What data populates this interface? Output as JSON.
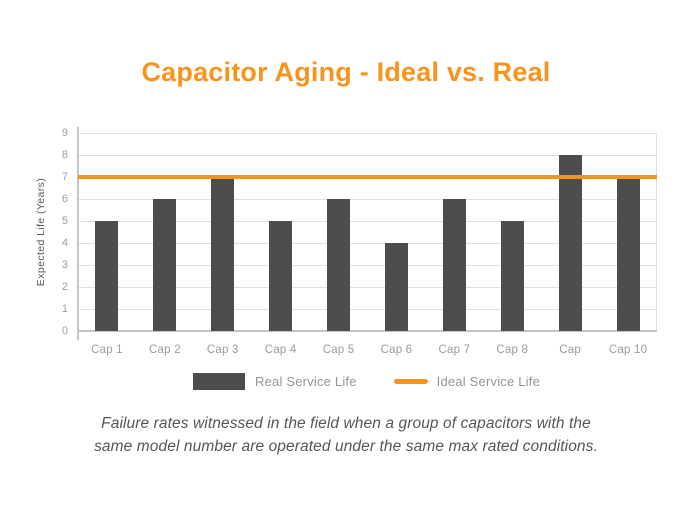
{
  "title": "Capacitor Aging - Ideal vs. Real",
  "colors": {
    "accent_orange": "#F7941D",
    "bar_gray": "#4D4D4D",
    "tick_label_gray": "#9B9C9E",
    "axis_title_gray": "#58595B",
    "legend_text_gray": "#939598",
    "caption_gray": "#55565A",
    "gridline_gray": "#DFDFDF",
    "axis_line_gray": "#C2C4C6"
  },
  "chart_data": {
    "type": "bar",
    "title": "Capacitor Aging - Ideal vs. Real",
    "categories": [
      "Cap 1",
      "Cap 2",
      "Cap 3",
      "Cap 4",
      "Cap 5",
      "Cap 6",
      "Cap 7",
      "Cap 8",
      "Cap",
      "Cap 10"
    ],
    "series": [
      {
        "name": "Real Service Life",
        "type": "bar",
        "color": "#4D4D4D",
        "values": [
          5,
          6,
          7,
          5,
          6,
          4,
          6,
          5,
          8,
          7
        ]
      },
      {
        "name": "Ideal Service Life",
        "type": "hline",
        "color": "#F7941D",
        "value": 7
      }
    ],
    "xlabel": "",
    "ylabel": "Expected Life (Years)",
    "ylim": [
      0,
      9
    ],
    "yticks": [
      0,
      1,
      2,
      3,
      4,
      5,
      6,
      7,
      8,
      9
    ],
    "grid": true,
    "legend_position": "bottom"
  },
  "legend": {
    "real_label": "Real Service Life",
    "ideal_label": "Ideal Service Life"
  },
  "caption": {
    "line1": "Failure rates witnessed in the field when a group of capacitors with the",
    "line2": "same model number are operated under the same max rated conditions."
  }
}
